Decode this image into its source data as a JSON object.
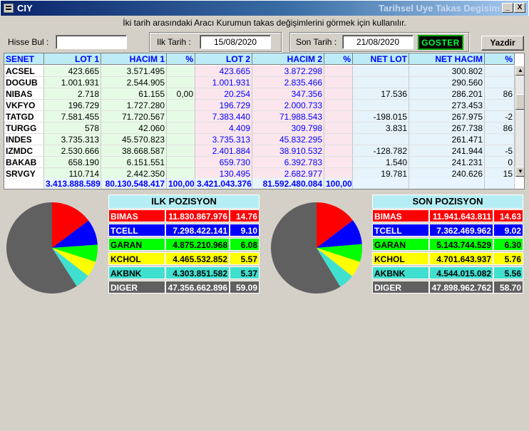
{
  "window": {
    "title_left": "CIY",
    "title_right": "Tarihsel Uye Takas Degisim",
    "min_glyph": "_",
    "close_glyph": "X"
  },
  "subtitle": "İki tarih arasındaki  Aracı Kurumun takas değişimlerini görmek için kullanılır.",
  "toolbar": {
    "hisse_label": "Hisse Bul :",
    "hisse_value": "",
    "ilk_label": "Ilk Tarih :",
    "ilk_value": "15/08/2020",
    "son_label": "Son Tarih :",
    "son_value": "21/08/2020",
    "goster_label": "GOSTER",
    "yazdir_label": "Yazdir"
  },
  "grid": {
    "headers": [
      "SENET",
      "LOT 1",
      "HACIM 1",
      "%",
      "LOT 2",
      "HACIM 2",
      "%",
      "NET LOT",
      "NET HACIM",
      "%"
    ],
    "rows": [
      [
        "ACSEL",
        "423.665",
        "3.571.495",
        "",
        "423.665",
        "3.872.298",
        "",
        "",
        "300.802",
        ""
      ],
      [
        "DOGUB",
        "1.001.931",
        "2.544.905",
        "",
        "1.001.931",
        "2.835.466",
        "",
        "",
        "290.560",
        ""
      ],
      [
        "NIBAS",
        "2.718",
        "61.155",
        "0,00",
        "20.254",
        "347.356",
        "",
        "17.536",
        "286.201",
        "86"
      ],
      [
        "VKFYO",
        "196.729",
        "1.727.280",
        "",
        "196.729",
        "2.000.733",
        "",
        "",
        "273.453",
        ""
      ],
      [
        "TATGD",
        "7.581.455",
        "71.720.567",
        "",
        "7.383.440",
        "71.988.543",
        "",
        "-198.015",
        "267.975",
        "-2"
      ],
      [
        "TURGG",
        "578",
        "42.060",
        "",
        "4.409",
        "309.798",
        "",
        "3.831",
        "267.738",
        "86"
      ],
      [
        "INDES",
        "3.735.313",
        "45.570.823",
        "",
        "3.735.313",
        "45.832.295",
        "",
        "",
        "261.471",
        ""
      ],
      [
        "IZMDC",
        "2.530.666",
        "38.668.587",
        "",
        "2.401.884",
        "38.910.532",
        "",
        "-128.782",
        "241.944",
        "-5"
      ],
      [
        "BAKAB",
        "658.190",
        "6.151.551",
        "",
        "659.730",
        "6.392.783",
        "",
        "1.540",
        "241.231",
        "0"
      ],
      [
        "SRVGY",
        "110.714",
        "2.442.350",
        "",
        "130.495",
        "2.682.977",
        "",
        "19.781",
        "240.626",
        "15"
      ]
    ],
    "totals": [
      "",
      "3.413.888.589",
      "80.130.548.417",
      "100,00",
      "3.421.043.376",
      "81.592.480.084",
      "100,00",
      "",
      "",
      ""
    ]
  },
  "ilk_pozisyon": {
    "title": "ILK POZISYON",
    "items": [
      {
        "name": "BIMAS",
        "value": "11.830.867.976",
        "pct": "14.76",
        "pct_num": 14.76,
        "color": "#ff0000",
        "text": "#ffffff"
      },
      {
        "name": "TCELL",
        "value": "7.298.422.141",
        "pct": "9.10",
        "pct_num": 9.1,
        "color": "#0000ff",
        "text": "#ffffff"
      },
      {
        "name": "GARAN",
        "value": "4.875.210.968",
        "pct": "6.08",
        "pct_num": 6.08,
        "color": "#00ff00",
        "text": "#000000"
      },
      {
        "name": "KCHOL",
        "value": "4.465.532.852",
        "pct": "5.57",
        "pct_num": 5.57,
        "color": "#ffff00",
        "text": "#000000"
      },
      {
        "name": "AKBNK",
        "value": "4.303.851.582",
        "pct": "5.37",
        "pct_num": 5.37,
        "color": "#40e0d0",
        "text": "#000000"
      },
      {
        "name": "DIGER",
        "value": "47.356.662.896",
        "pct": "59.09",
        "pct_num": 59.09,
        "color": "#606060",
        "text": "#ffffff"
      }
    ]
  },
  "son_pozisyon": {
    "title": "SON POZISYON",
    "items": [
      {
        "name": "BIMAS",
        "value": "11.941.643.811",
        "pct": "14.63",
        "pct_num": 14.63,
        "color": "#ff0000",
        "text": "#ffffff"
      },
      {
        "name": "TCELL",
        "value": "7.362.469.962",
        "pct": "9.02",
        "pct_num": 9.02,
        "color": "#0000ff",
        "text": "#ffffff"
      },
      {
        "name": "GARAN",
        "value": "5.143.744.529",
        "pct": "6.30",
        "pct_num": 6.3,
        "color": "#00ff00",
        "text": "#000000"
      },
      {
        "name": "KCHOL",
        "value": "4.701.643.937",
        "pct": "5.76",
        "pct_num": 5.76,
        "color": "#ffff00",
        "text": "#000000"
      },
      {
        "name": "AKBNK",
        "value": "4.544.015.082",
        "pct": "5.56",
        "pct_num": 5.56,
        "color": "#40e0d0",
        "text": "#000000"
      },
      {
        "name": "DIGER",
        "value": "47.898.962.762",
        "pct": "58.70",
        "pct_num": 58.7,
        "color": "#606060",
        "text": "#ffffff"
      }
    ]
  }
}
